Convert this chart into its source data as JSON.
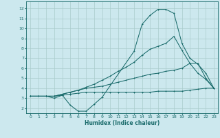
{
  "xlabel": "Humidex (Indice chaleur)",
  "background_color": "#cce8ee",
  "grid_color": "#aacccc",
  "line_color": "#1a6b6b",
  "xlim": [
    -0.5,
    23.5
  ],
  "ylim": [
    1.5,
    12.7
  ],
  "xticks": [
    0,
    1,
    2,
    3,
    4,
    5,
    6,
    7,
    8,
    9,
    10,
    11,
    12,
    13,
    14,
    15,
    16,
    17,
    18,
    19,
    20,
    21,
    22,
    23
  ],
  "yticks": [
    2,
    3,
    4,
    5,
    6,
    7,
    8,
    9,
    10,
    11,
    12
  ],
  "curve1_x": [
    0,
    1,
    2,
    3,
    4,
    5,
    6,
    7,
    8,
    9,
    10,
    11,
    12,
    13,
    14,
    15,
    16,
    17,
    18,
    19,
    20,
    21,
    22,
    23
  ],
  "curve1_y": [
    3.2,
    3.2,
    3.2,
    3.2,
    3.3,
    3.4,
    3.5,
    3.6,
    3.6,
    3.6,
    3.6,
    3.6,
    3.6,
    3.6,
    3.6,
    3.6,
    3.7,
    3.7,
    3.7,
    3.7,
    3.8,
    3.9,
    4.0,
    4.0
  ],
  "curve2_x": [
    0,
    1,
    2,
    3,
    4,
    5,
    6,
    7,
    8,
    9,
    10,
    11,
    12,
    13,
    14,
    15,
    16,
    17,
    18,
    19,
    20,
    21,
    22,
    23
  ],
  "curve2_y": [
    3.2,
    3.2,
    3.2,
    3.2,
    3.4,
    3.6,
    3.8,
    4.0,
    4.1,
    4.2,
    4.4,
    4.6,
    4.8,
    5.0,
    5.2,
    5.4,
    5.5,
    5.7,
    5.8,
    6.0,
    6.5,
    6.5,
    5.0,
    4.0
  ],
  "curve3_x": [
    0,
    1,
    2,
    3,
    4,
    5,
    6,
    7,
    8,
    9,
    10,
    11,
    12,
    13,
    14,
    15,
    16,
    17,
    18,
    19,
    20,
    21,
    22,
    23
  ],
  "curve3_y": [
    3.2,
    3.2,
    3.2,
    3.2,
    3.4,
    3.6,
    3.8,
    4.1,
    4.4,
    4.8,
    5.2,
    5.7,
    6.1,
    6.6,
    7.3,
    7.9,
    8.2,
    8.5,
    9.2,
    7.8,
    6.5,
    5.5,
    4.9,
    4.0
  ],
  "curve4_x": [
    0,
    2,
    3,
    4,
    5,
    6,
    7,
    8,
    9,
    13,
    14,
    15,
    16,
    17,
    18,
    19,
    20,
    21,
    22,
    23
  ],
  "curve4_y": [
    3.2,
    3.2,
    3.0,
    3.3,
    2.3,
    1.7,
    1.7,
    2.4,
    3.1,
    7.7,
    10.4,
    11.3,
    11.9,
    11.9,
    11.5,
    8.5,
    7.0,
    6.4,
    5.5,
    4.0
  ]
}
